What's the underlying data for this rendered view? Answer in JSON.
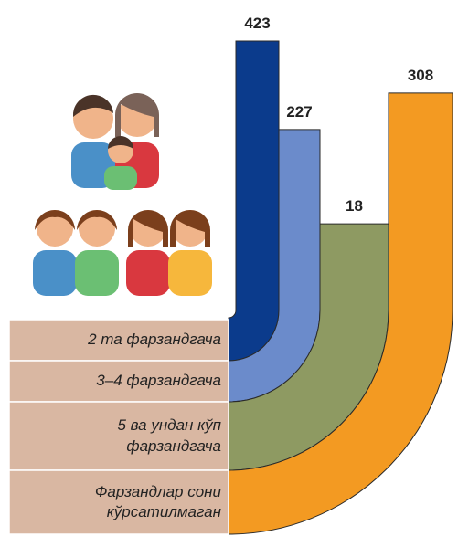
{
  "chart_data": {
    "type": "bar",
    "categories": [
      "2 та фарзандгача",
      "3–4 фарзандгача",
      "5 ва ундан кўп\nфарзандгача",
      "Фарзандлар сони\nкўрсатилмаган"
    ],
    "values": [
      423,
      227,
      18,
      308
    ],
    "colors": [
      "#0b3b8c",
      "#6b8bcb",
      "#8e9a62",
      "#f39a22"
    ]
  }
}
